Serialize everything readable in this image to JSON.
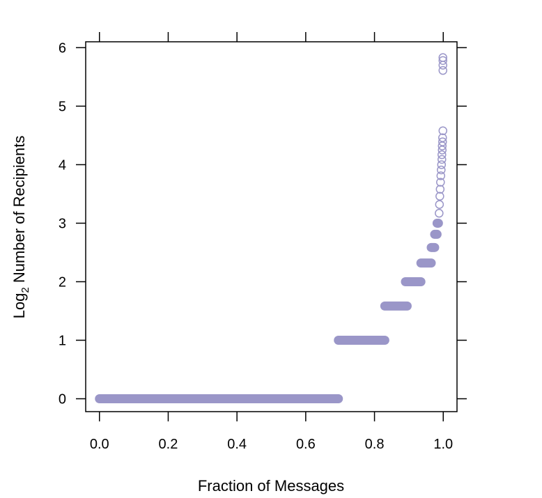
{
  "chart_data": {
    "type": "scatter",
    "title": "",
    "xlabel": "Fraction of Messages",
    "ylabel_main": "Log",
    "ylabel_sub": "2",
    "ylabel_rest": " Number of Recipients",
    "xlim": [
      -0.04,
      1.04
    ],
    "ylim": [
      -0.22,
      6.1
    ],
    "x_ticks": [
      0,
      0.2,
      0.4,
      0.6,
      0.8,
      1.0
    ],
    "x_tick_labels": [
      "0.0",
      "0.2",
      "0.4",
      "0.6",
      "0.8",
      "1.0"
    ],
    "y_ticks": [
      0,
      1,
      2,
      3,
      4,
      5,
      6
    ],
    "y_tick_labels": [
      "0",
      "1",
      "2",
      "3",
      "4",
      "5",
      "6"
    ],
    "grid": false,
    "marker": "open-circle",
    "point_color": "#9A96C8",
    "bands": [
      {
        "y": 0,
        "x_start": 0.0,
        "x_end": 0.695
      },
      {
        "y": 1,
        "x_start": 0.695,
        "x_end": 0.83
      },
      {
        "y": 1.585,
        "x_start": 0.83,
        "x_end": 0.895
      },
      {
        "y": 2.0,
        "x_start": 0.89,
        "x_end": 0.935
      },
      {
        "y": 2.32,
        "x_start": 0.935,
        "x_end": 0.965
      },
      {
        "y": 2.585,
        "x_start": 0.965,
        "x_end": 0.975
      },
      {
        "y": 2.81,
        "x_start": 0.975,
        "x_end": 0.982
      },
      {
        "y": 3.0,
        "x_start": 0.982,
        "x_end": 0.986
      }
    ],
    "points": [
      {
        "x": 0.988,
        "y": 3.17
      },
      {
        "x": 0.989,
        "y": 3.32
      },
      {
        "x": 0.99,
        "y": 3.46
      },
      {
        "x": 0.991,
        "y": 3.58
      },
      {
        "x": 0.992,
        "y": 3.7
      },
      {
        "x": 0.993,
        "y": 3.81
      },
      {
        "x": 0.994,
        "y": 3.91
      },
      {
        "x": 0.995,
        "y": 4.0
      },
      {
        "x": 0.996,
        "y": 4.09
      },
      {
        "x": 0.996,
        "y": 4.17
      },
      {
        "x": 0.997,
        "y": 4.25
      },
      {
        "x": 0.997,
        "y": 4.32
      },
      {
        "x": 0.998,
        "y": 4.39
      },
      {
        "x": 0.998,
        "y": 4.46
      },
      {
        "x": 0.999,
        "y": 4.58
      },
      {
        "x": 0.999,
        "y": 5.61
      },
      {
        "x": 0.999,
        "y": 5.7
      },
      {
        "x": 0.999,
        "y": 5.78
      },
      {
        "x": 0.999,
        "y": 5.83
      }
    ]
  }
}
